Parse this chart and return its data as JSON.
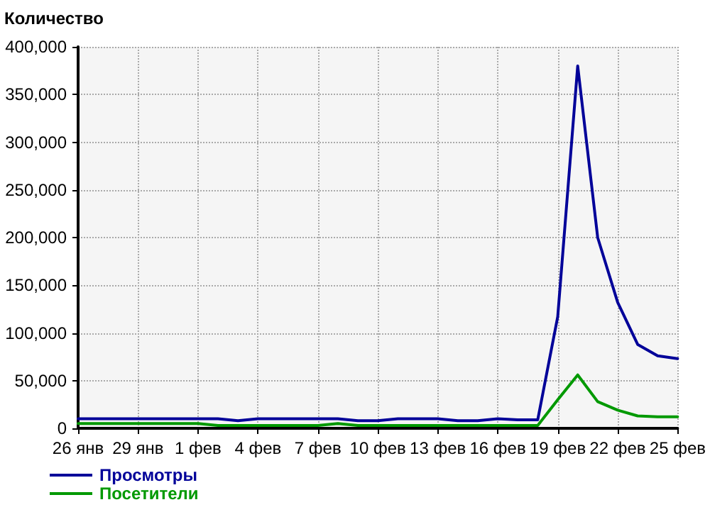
{
  "chart_data": {
    "type": "line",
    "ylabel": "Количество",
    "categories": [
      "26 янв",
      null,
      null,
      "29 янв",
      null,
      null,
      "1 фев",
      null,
      null,
      "4 фев",
      null,
      null,
      "7 фев",
      null,
      null,
      "10 фев",
      null,
      null,
      "13 фев",
      null,
      null,
      "16 фев",
      null,
      null,
      "19 фев",
      null,
      null,
      "22 фев",
      null,
      null,
      "25 фев"
    ],
    "series": [
      {
        "name": "Просмотры",
        "color": "#000099",
        "values": [
          10000,
          10000,
          10000,
          10000,
          10000,
          10000,
          10000,
          10000,
          8000,
          10000,
          10000,
          10000,
          10000,
          10000,
          8000,
          8000,
          10000,
          10000,
          10000,
          8000,
          8000,
          10000,
          9000,
          9000,
          117000,
          380000,
          200000,
          132000,
          88000,
          76000,
          73000
        ]
      },
      {
        "name": "Посетители",
        "color": "#009900",
        "values": [
          5000,
          5000,
          5000,
          5000,
          5000,
          5000,
          5000,
          3000,
          3000,
          3000,
          3000,
          3000,
          3000,
          5000,
          3000,
          3000,
          3000,
          3000,
          3000,
          3000,
          3000,
          3000,
          3000,
          3000,
          30000,
          56000,
          28000,
          19000,
          13000,
          12000,
          12000
        ]
      }
    ],
    "ylim": [
      0,
      400000
    ],
    "yticks": [
      0,
      {
        "value": 50000,
        "label": "50,000"
      },
      {
        "value": 100000,
        "label": "100,000"
      },
      {
        "value": 150000,
        "label": "150,000"
      },
      {
        "value": 200000,
        "label": "200,000"
      },
      {
        "value": 250000,
        "label": "250,000"
      },
      {
        "value": 300000,
        "label": "300,000"
      },
      {
        "value": 350000,
        "label": "350,000"
      },
      {
        "value": 400000,
        "label": "400,000"
      }
    ],
    "grid": true,
    "legend": "bottom left",
    "marker": "none",
    "line_style": "solid"
  }
}
